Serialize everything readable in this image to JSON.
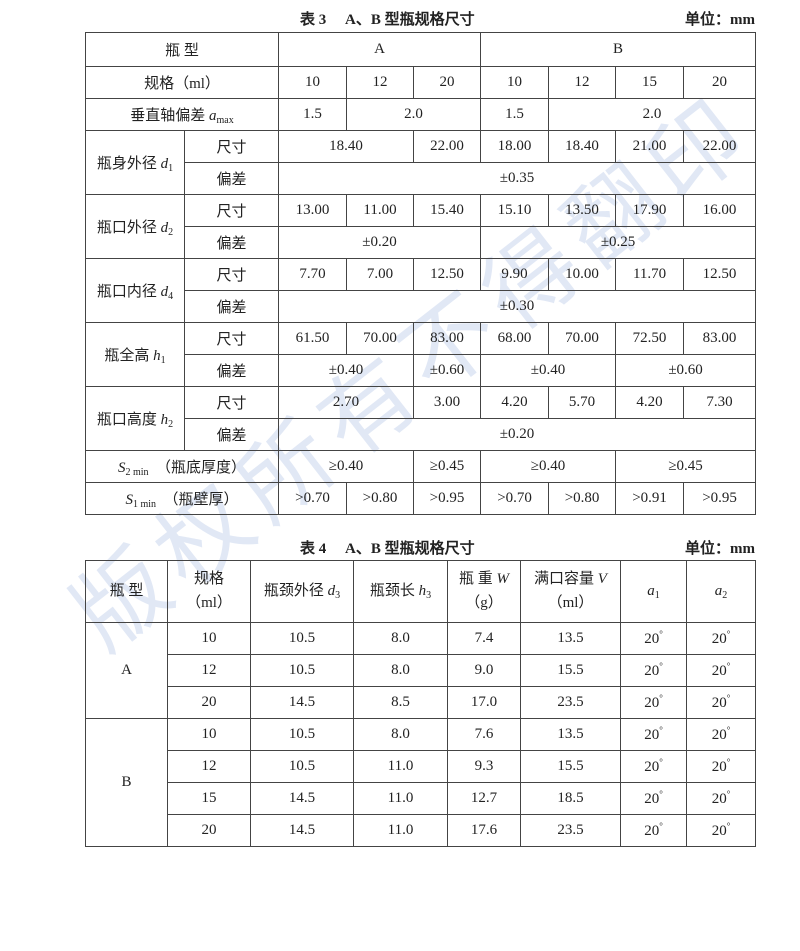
{
  "table3": {
    "number": "表 3",
    "title": "A、B 型瓶规格尺寸",
    "unit": "单位：mm",
    "type_label": "瓶 型",
    "type_a": "A",
    "type_b": "B",
    "spec_label": "规格（ml）",
    "specs": [
      "10",
      "12",
      "20",
      "10",
      "12",
      "15",
      "20"
    ],
    "size_label": "尺寸",
    "tol_label": "偏差",
    "amax": {
      "label": "垂直轴偏差 ",
      "sym": "a",
      "sub": "max",
      "values": [
        "1.5",
        "2.0",
        "1.5",
        "2.0"
      ]
    },
    "d1": {
      "label": "瓶身外径 ",
      "sym": "d",
      "sub": "1",
      "sizes": [
        "18.40",
        "22.00",
        "18.00",
        "18.40",
        "21.00",
        "22.00"
      ],
      "tols": [
        "±0.35"
      ]
    },
    "d2": {
      "label": "瓶口外径 ",
      "sym": "d",
      "sub": "2",
      "sizes": [
        "13.00",
        "11.00",
        "15.40",
        "15.10",
        "13.50",
        "17.90",
        "16.00"
      ],
      "tols": [
        "±0.20",
        "±0.25"
      ]
    },
    "d4": {
      "label": "瓶口内径 ",
      "sym": "d",
      "sub": "4",
      "sizes": [
        "7.70",
        "7.00",
        "12.50",
        "9.90",
        "10.00",
        "11.70",
        "12.50"
      ],
      "tols": [
        "±0.30"
      ]
    },
    "h1": {
      "label": "瓶全高 ",
      "sym": "h",
      "sub": "1",
      "sizes": [
        "61.50",
        "70.00",
        "83.00",
        "68.00",
        "70.00",
        "72.50",
        "83.00"
      ],
      "tols": [
        "±0.40",
        "±0.60",
        "±0.40",
        "±0.60"
      ]
    },
    "h2": {
      "label": "瓶口高度 ",
      "sym": "h",
      "sub": "2",
      "sizes": [
        "2.70",
        "3.00",
        "4.20",
        "5.70",
        "4.20",
        "7.30"
      ],
      "tols": [
        "±0.20"
      ]
    },
    "s2": {
      "sym": "S",
      "sub": "2 min",
      "label": "（瓶底厚度）",
      "values": [
        "≥0.40",
        "≥0.45",
        "≥0.40",
        "≥0.45"
      ]
    },
    "s1": {
      "sym": "S",
      "sub": "1 min",
      "label": "（瓶壁厚）",
      "values": [
        ">0.70",
        ">0.80",
        ">0.95",
        ">0.70",
        ">0.80",
        ">0.91",
        ">0.95"
      ]
    }
  },
  "table4": {
    "number": "表 4",
    "title": "A、B 型瓶规格尺寸",
    "unit": "单位：mm",
    "headers": {
      "type": "瓶 型",
      "spec": "规格",
      "spec_unit": "（ml）",
      "d3_label": "瓶颈外径 ",
      "d3_sym": "d",
      "d3_sub": "3",
      "h3_label": "瓶颈长 ",
      "h3_sym": "h",
      "h3_sub": "3",
      "w_label": "瓶 重 ",
      "w_sym": "W",
      "w_unit": "（g）",
      "v_label": "满口容量 ",
      "v_sym": "V",
      "v_unit": "（ml）",
      "a1_sym": "a",
      "a1_sub": "1",
      "a2_sym": "a",
      "a2_sub": "2"
    },
    "groups": [
      {
        "type": "A",
        "rows": [
          {
            "spec": "10",
            "d3": "10.5",
            "h3": "8.0",
            "w": "7.4",
            "v": "13.5",
            "a1": "20",
            "a2": "20"
          },
          {
            "spec": "12",
            "d3": "10.5",
            "h3": "8.0",
            "w": "9.0",
            "v": "15.5",
            "a1": "20",
            "a2": "20"
          },
          {
            "spec": "20",
            "d3": "14.5",
            "h3": "8.5",
            "w": "17.0",
            "v": "23.5",
            "a1": "20",
            "a2": "20"
          }
        ]
      },
      {
        "type": "B",
        "rows": [
          {
            "spec": "10",
            "d3": "10.5",
            "h3": "8.0",
            "w": "7.6",
            "v": "13.5",
            "a1": "20",
            "a2": "20"
          },
          {
            "spec": "12",
            "d3": "10.5",
            "h3": "11.0",
            "w": "9.3",
            "v": "15.5",
            "a1": "20",
            "a2": "20"
          },
          {
            "spec": "15",
            "d3": "14.5",
            "h3": "11.0",
            "w": "12.7",
            "v": "18.5",
            "a1": "20",
            "a2": "20"
          },
          {
            "spec": "20",
            "d3": "14.5",
            "h3": "11.0",
            "w": "17.6",
            "v": "23.5",
            "a1": "20",
            "a2": "20"
          }
        ]
      }
    ],
    "degree": "°"
  },
  "watermark": "版权所有不得翻印"
}
